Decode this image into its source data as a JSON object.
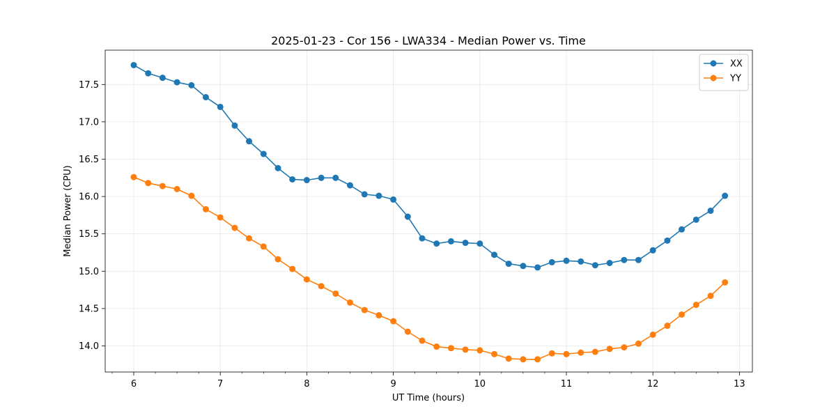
{
  "chart_data": {
    "type": "line",
    "title": "2025-01-23 - Cor 156 - LWA334 - Median Power vs. Time",
    "xlabel": "UT Time (hours)",
    "ylabel": "Median Power (CPU)",
    "xlim": [
      5.67,
      13.15
    ],
    "ylim": [
      13.65,
      17.96
    ],
    "xticks": [
      6,
      7,
      8,
      9,
      10,
      11,
      12,
      13
    ],
    "xtick_labels": [
      "6",
      "7",
      "8",
      "9",
      "10",
      "11",
      "12",
      "13"
    ],
    "xminor_step": 0.25,
    "yticks": [
      14.0,
      14.5,
      15.0,
      15.5,
      16.0,
      16.5,
      17.0,
      17.5
    ],
    "ytick_labels": [
      "14.0",
      "14.5",
      "15.0",
      "15.5",
      "16.0",
      "16.5",
      "17.0",
      "17.5"
    ],
    "grid": true,
    "legend_position": "top-right",
    "x": [
      6.0,
      6.167,
      6.333,
      6.5,
      6.667,
      6.833,
      7.0,
      7.167,
      7.333,
      7.5,
      7.667,
      7.833,
      8.0,
      8.167,
      8.333,
      8.5,
      8.667,
      8.833,
      9.0,
      9.167,
      9.333,
      9.5,
      9.667,
      9.833,
      10.0,
      10.167,
      10.333,
      10.5,
      10.667,
      10.833,
      11.0,
      11.167,
      11.333,
      11.5,
      11.667,
      11.833,
      12.0,
      12.167,
      12.333,
      12.5,
      12.667,
      12.833
    ],
    "series": [
      {
        "name": "XX",
        "color": "#1f77b4",
        "values": [
          17.76,
          17.65,
          17.59,
          17.53,
          17.49,
          17.33,
          17.2,
          16.95,
          16.74,
          16.57,
          16.38,
          16.23,
          16.22,
          16.25,
          16.25,
          16.15,
          16.03,
          16.01,
          15.96,
          15.73,
          15.44,
          15.37,
          15.4,
          15.38,
          15.37,
          15.22,
          15.1,
          15.07,
          15.05,
          15.12,
          15.14,
          15.13,
          15.08,
          15.11,
          15.15,
          15.15,
          15.28,
          15.41,
          15.56,
          15.69,
          15.81,
          16.01
        ]
      },
      {
        "name": "YY",
        "color": "#ff7f0e",
        "values": [
          16.26,
          16.18,
          16.14,
          16.1,
          16.01,
          15.83,
          15.72,
          15.58,
          15.44,
          15.33,
          15.16,
          15.03,
          14.89,
          14.8,
          14.7,
          14.58,
          14.48,
          14.41,
          14.33,
          14.19,
          14.07,
          13.99,
          13.97,
          13.95,
          13.94,
          13.89,
          13.83,
          13.82,
          13.82,
          13.9,
          13.89,
          13.91,
          13.92,
          13.96,
          13.98,
          14.03,
          14.15,
          14.27,
          14.42,
          14.55,
          14.67,
          14.85
        ]
      }
    ]
  }
}
